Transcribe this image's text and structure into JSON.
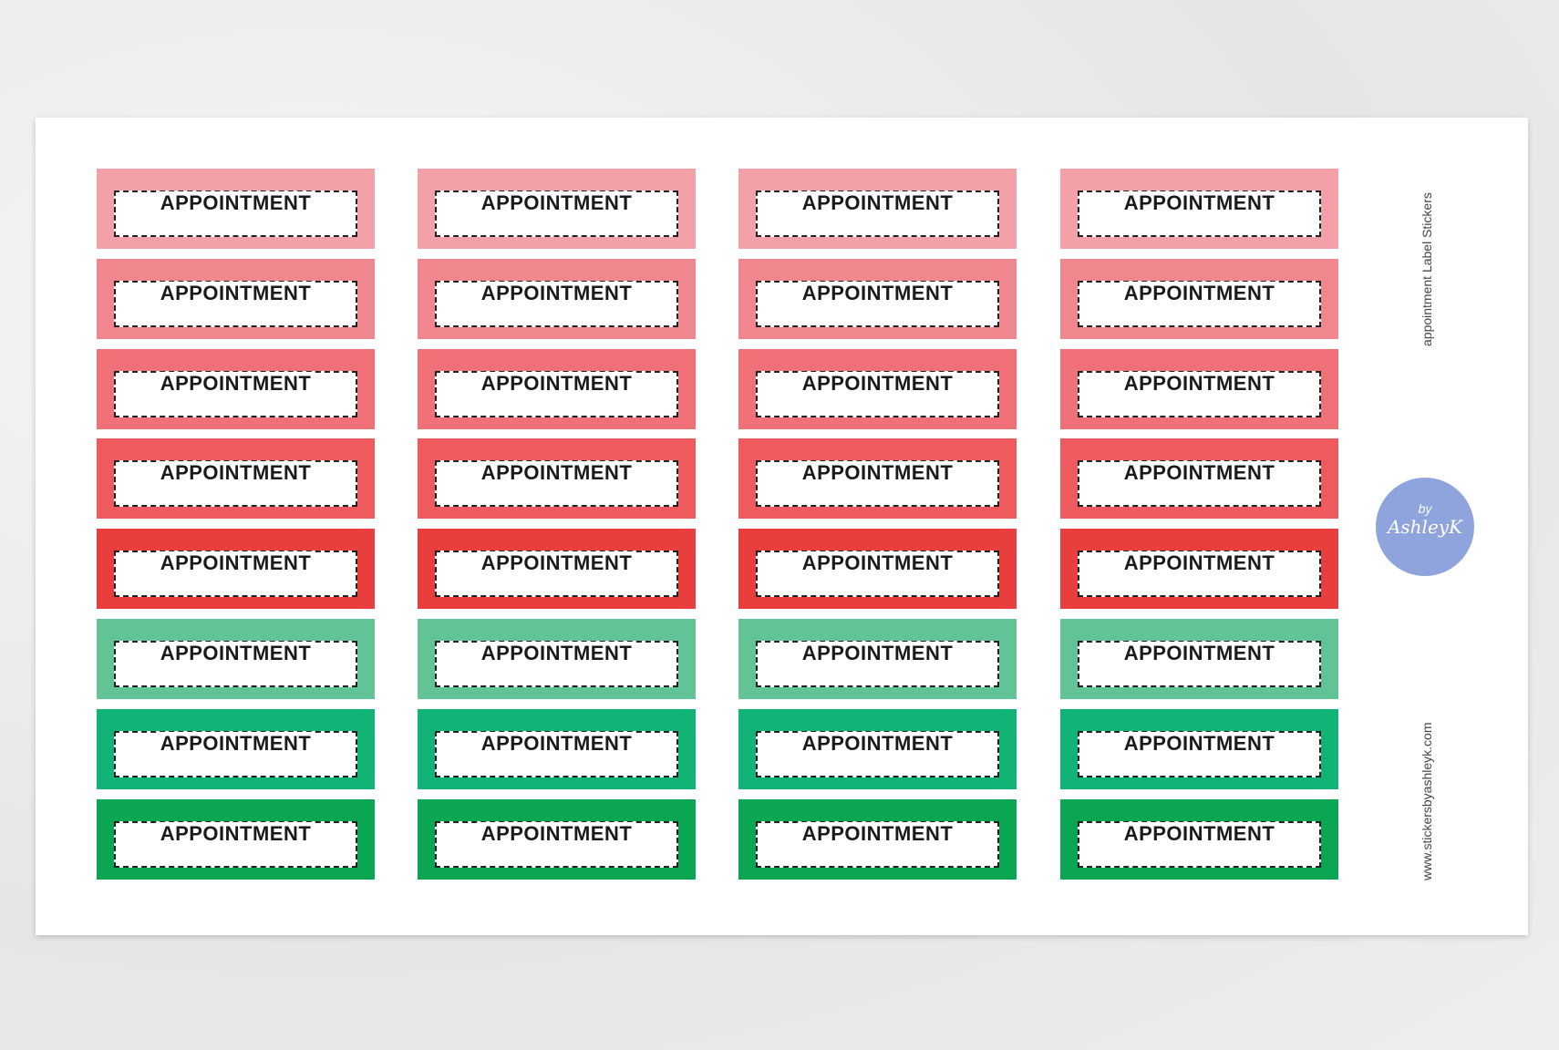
{
  "sheet": {
    "side_title": "appointment Label Stickers",
    "website": "www.stickersbyashleyk.com",
    "logo": {
      "by": "by",
      "name": "AshleyK"
    },
    "rows": [
      {
        "color": "#f4a0a8",
        "labels": [
          "APPOINTMENT",
          "APPOINTMENT",
          "APPOINTMENT",
          "APPOINTMENT"
        ]
      },
      {
        "color": "#f0878f",
        "labels": [
          "APPOINTMENT",
          "APPOINTMENT",
          "APPOINTMENT",
          "APPOINTMENT"
        ]
      },
      {
        "color": "#ef7077",
        "labels": [
          "APPOINTMENT",
          "APPOINTMENT",
          "APPOINTMENT",
          "APPOINTMENT"
        ]
      },
      {
        "color": "#ee5a5d",
        "labels": [
          "APPOINTMENT",
          "APPOINTMENT",
          "APPOINTMENT",
          "APPOINTMENT"
        ]
      },
      {
        "color": "#e93e3e",
        "labels": [
          "APPOINTMENT",
          "APPOINTMENT",
          "APPOINTMENT",
          "APPOINTMENT"
        ]
      },
      {
        "color": "#62c397",
        "labels": [
          "APPOINTMENT",
          "APPOINTMENT",
          "APPOINTMENT",
          "APPOINTMENT"
        ]
      },
      {
        "color": "#11b476",
        "labels": [
          "APPOINTMENT",
          "APPOINTMENT",
          "APPOINTMENT",
          "APPOINTMENT"
        ]
      },
      {
        "color": "#0aa653",
        "labels": [
          "APPOINTMENT",
          "APPOINTMENT",
          "APPOINTMENT",
          "APPOINTMENT"
        ]
      }
    ]
  }
}
